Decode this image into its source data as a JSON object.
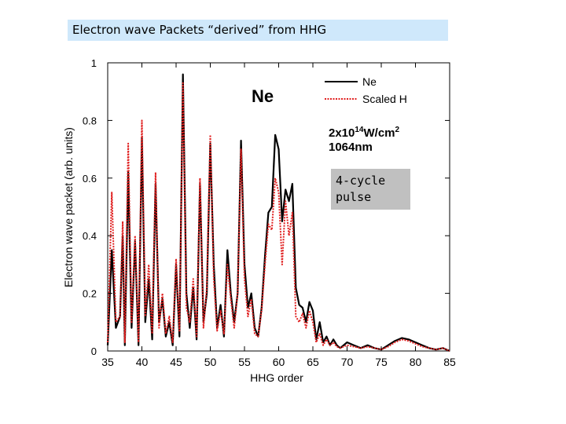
{
  "title": "Electron wave Packets “derived” from HHG",
  "pulse_note": [
    "4-cycle",
    "pulse"
  ],
  "chart_data": {
    "type": "line",
    "xlabel": "HHG order",
    "ylabel": "Electron wave packet (arb. units)",
    "xlim": [
      35,
      85
    ],
    "ylim": [
      0,
      1
    ],
    "xticks": [
      "35",
      "40",
      "45",
      "50",
      "55",
      "60",
      "65",
      "70",
      "75",
      "80",
      "85"
    ],
    "yticks": [
      "0",
      "0.2",
      "0.4",
      "0.6",
      "0.8",
      "1"
    ],
    "legend_position": "top-right",
    "annotations": {
      "element": "Ne",
      "intensity_base": "2x10",
      "intensity_exp": "14",
      "intensity_unit": "W/cm",
      "intensity_unit_exp": "2",
      "wavelength": "1064nm"
    },
    "series": [
      {
        "name": "Ne",
        "color": "#000000",
        "dash": "solid",
        "x": [
          35,
          35.6,
          36.2,
          36.8,
          37.2,
          37.5,
          38,
          38.5,
          39,
          39.5,
          40,
          40.5,
          41,
          41.5,
          42,
          42.5,
          43,
          43.5,
          44,
          44.5,
          45,
          45.5,
          46,
          46.5,
          47,
          47.5,
          48,
          48.5,
          49,
          49.5,
          50,
          50.5,
          51,
          51.5,
          52,
          52.5,
          53,
          53.5,
          54,
          54.5,
          55,
          55.5,
          56,
          56.5,
          57,
          57.5,
          58,
          58.5,
          59,
          59.5,
          60,
          60.5,
          61,
          61.5,
          62,
          62.5,
          63,
          63.5,
          64,
          64.5,
          65,
          65.5,
          66,
          66.5,
          67,
          67.5,
          68,
          68.5,
          69,
          70,
          71,
          72,
          73,
          74,
          75,
          76,
          77,
          78,
          79,
          80,
          81,
          82,
          83,
          84,
          85
        ],
        "y": [
          0.02,
          0.35,
          0.08,
          0.12,
          0.4,
          0.02,
          0.62,
          0.08,
          0.38,
          0.02,
          0.74,
          0.1,
          0.25,
          0.04,
          0.58,
          0.1,
          0.18,
          0.05,
          0.1,
          0.02,
          0.3,
          0.05,
          0.96,
          0.2,
          0.08,
          0.22,
          0.04,
          0.58,
          0.1,
          0.2,
          0.72,
          0.3,
          0.08,
          0.16,
          0.05,
          0.35,
          0.2,
          0.1,
          0.2,
          0.73,
          0.3,
          0.15,
          0.2,
          0.08,
          0.05,
          0.15,
          0.33,
          0.48,
          0.5,
          0.75,
          0.7,
          0.45,
          0.56,
          0.52,
          0.58,
          0.22,
          0.16,
          0.15,
          0.1,
          0.17,
          0.14,
          0.04,
          0.1,
          0.03,
          0.05,
          0.02,
          0.04,
          0.02,
          0.01,
          0.03,
          0.02,
          0.01,
          0.02,
          0.01,
          0.005,
          0.02,
          0.035,
          0.045,
          0.04,
          0.03,
          0.02,
          0.01,
          0.005,
          0.01,
          0.0
        ]
      },
      {
        "name": "Scaled H",
        "color": "#e02020",
        "dash": "dotted",
        "x": [
          35,
          35.6,
          36.2,
          36.8,
          37.2,
          37.5,
          38,
          38.5,
          39,
          39.5,
          40,
          40.5,
          41,
          41.5,
          42,
          42.5,
          43,
          43.5,
          44,
          44.5,
          45,
          45.5,
          46,
          46.5,
          47,
          47.5,
          48,
          48.5,
          49,
          49.5,
          50,
          50.5,
          51,
          51.5,
          52,
          52.5,
          53,
          53.5,
          54,
          54.5,
          55,
          55.5,
          56,
          56.5,
          57,
          57.5,
          58,
          58.5,
          59,
          59.5,
          60,
          60.5,
          61,
          61.5,
          62,
          62.5,
          63,
          63.5,
          64,
          64.5,
          65,
          65.5,
          66,
          66.5,
          67,
          67.5,
          68,
          68.5,
          69,
          70,
          71,
          72,
          73,
          74,
          75,
          76,
          77,
          78,
          79,
          80,
          81,
          82,
          83,
          84,
          85
        ],
        "y": [
          0.03,
          0.55,
          0.1,
          0.12,
          0.45,
          0.03,
          0.72,
          0.1,
          0.4,
          0.03,
          0.8,
          0.12,
          0.3,
          0.06,
          0.62,
          0.08,
          0.2,
          0.06,
          0.12,
          0.03,
          0.32,
          0.07,
          0.93,
          0.15,
          0.1,
          0.25,
          0.05,
          0.6,
          0.08,
          0.22,
          0.75,
          0.25,
          0.07,
          0.14,
          0.06,
          0.3,
          0.18,
          0.08,
          0.2,
          0.7,
          0.25,
          0.12,
          0.18,
          0.06,
          0.05,
          0.14,
          0.3,
          0.44,
          0.42,
          0.6,
          0.55,
          0.3,
          0.52,
          0.4,
          0.48,
          0.12,
          0.1,
          0.13,
          0.08,
          0.14,
          0.1,
          0.03,
          0.06,
          0.02,
          0.04,
          0.02,
          0.03,
          0.015,
          0.01,
          0.02,
          0.015,
          0.01,
          0.015,
          0.01,
          0.005,
          0.015,
          0.03,
          0.04,
          0.035,
          0.025,
          0.015,
          0.01,
          0.005,
          0.01,
          0.0
        ]
      }
    ]
  }
}
